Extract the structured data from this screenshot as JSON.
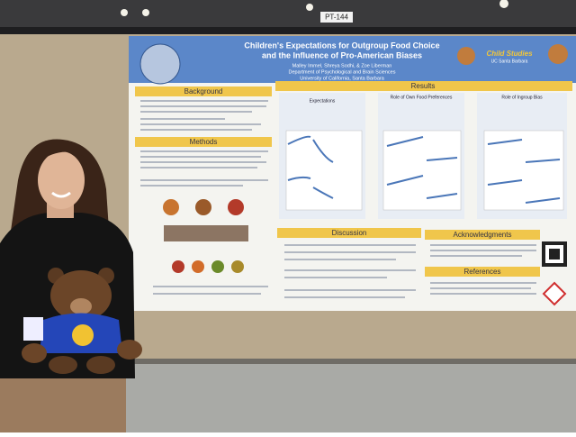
{
  "sign": "PT-144",
  "poster": {
    "title": [
      "Children's Expectations for Outgroup Food Choice",
      "and the Influence of Pro-American Biases"
    ],
    "authors": "Malley Immel, Shreya Sodhi, & Zoe Liberman",
    "department": "Department of Psychological and Brain Sciences",
    "university": "University of California, Santa Barbara",
    "logo": [
      "Child Studies",
      "UC Santa Barbara"
    ],
    "sections": {
      "background": "Background",
      "methods": "Methods",
      "results": "Results",
      "discussion": "Discussion",
      "acknowledgments": "Acknowledgments",
      "references": "References"
    },
    "results_panels": [
      "Expectations",
      "Role of Own Food Preferences",
      "Role of Ingroup Bias"
    ]
  }
}
